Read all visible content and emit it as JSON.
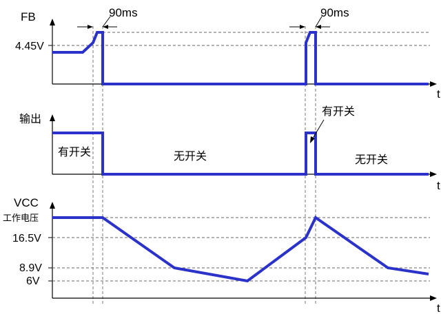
{
  "panels": {
    "fb": {
      "y_label": "FB",
      "tick_label": "4.45V",
      "t_label": "t",
      "pulse_width_1": "90ms",
      "pulse_width_2": "90ms"
    },
    "output": {
      "y_label": "输出",
      "t_label": "t",
      "segment_switching_1": "有开关",
      "segment_no_switching_1": "无开关",
      "segment_switching_2": "有开关",
      "segment_no_switching_2": "无开关"
    },
    "vcc": {
      "y_label": "VCC",
      "t_label": "t",
      "tick_work_voltage": "工作电压",
      "tick_16_5": "16.5V",
      "tick_8_9": "8.9V",
      "tick_6": "6V"
    }
  },
  "colors": {
    "waveform": "#2b32c9",
    "axis": "#000000",
    "guide": "#666666"
  }
}
